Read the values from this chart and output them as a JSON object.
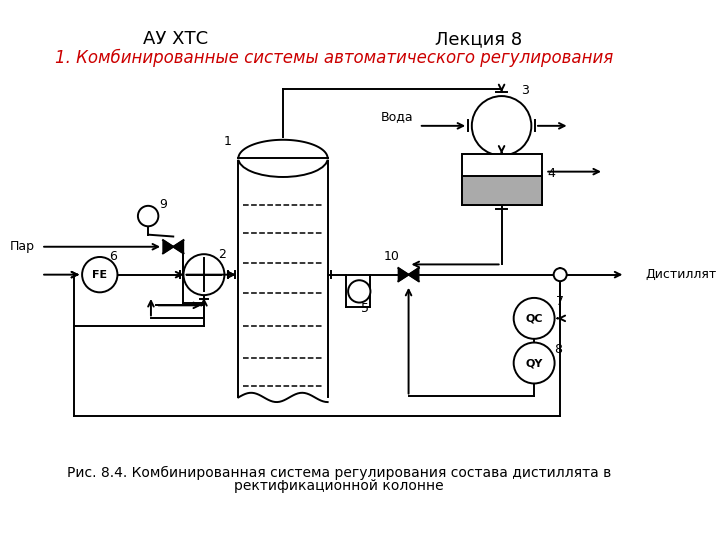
{
  "title_left": "АУ ХТС",
  "title_right": "Лекция 8",
  "subtitle": "1. Комбинированные системы автоматического регулирования",
  "caption_line1": "Рис. 8.4. Комбинированная система регулирования состава дистиллята в",
  "caption_line2": "ректификационной колонне",
  "bg_color": "#ffffff",
  "line_color": "#000000",
  "subtitle_color": "#cc0000",
  "gray_color": "#aaaaaa"
}
